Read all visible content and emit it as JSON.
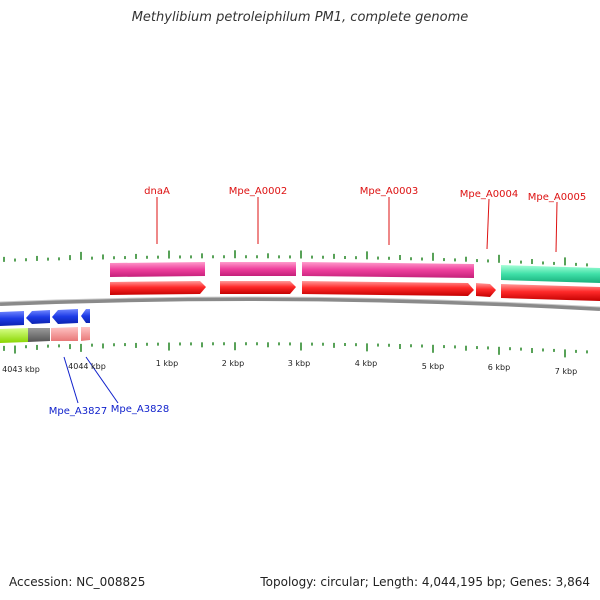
{
  "title": "Methylibium petroleiphilum PM1, complete genome",
  "footer": {
    "accession": "Accession: NC_008825",
    "summary": "Topology: circular; Length: 4,044,195 bp; Genes: 3,864"
  },
  "colors": {
    "forward_gene": "#ff3b3b",
    "reverse_gene": "#2244dd",
    "cds_magenta": "#ee4fa8",
    "cds_green": "#3fe0a8",
    "forward_label": "#dd1111",
    "reverse_label": "#1122cc",
    "tick": "#2e8b2e",
    "backbone": "#888888"
  },
  "scale_labels": [
    "4043 kbp",
    "4044 kbp",
    "1 kbp",
    "2 kbp",
    "3 kbp",
    "4 kbp",
    "5 kbp",
    "6 kbp",
    "7 kbp"
  ],
  "forward_genes": [
    "dnaA",
    "Mpe_A0002",
    "Mpe_A0003",
    "Mpe_A0004",
    "Mpe_A0005"
  ],
  "reverse_genes": [
    "Mpe_A3827",
    "Mpe_A3828"
  ]
}
